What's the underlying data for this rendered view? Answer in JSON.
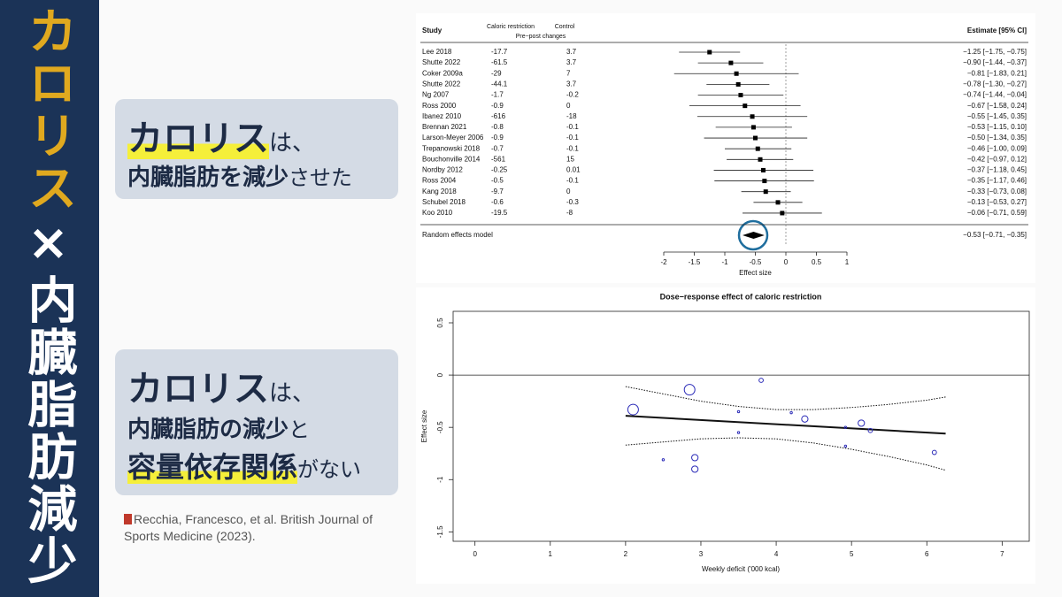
{
  "sidebar": {
    "title_accent": "カロリス",
    "title_rest": "×内臓脂肪減少"
  },
  "panels": [
    {
      "lines": [
        [
          "カロリス",
          "は、"
        ],
        [
          "内臓脂肪を減少",
          "させた"
        ]
      ]
    },
    {
      "lines": [
        [
          "カロリス",
          "は、"
        ],
        [
          "内臓脂肪の減少",
          "と"
        ],
        [
          "容量依存関係",
          "がない"
        ]
      ]
    }
  ],
  "citation": "Recchia, Francesco, et al. British Journal of Sports Medicine (2023).",
  "chart_data": [
    {
      "type": "forest",
      "columns": {
        "study": "Study",
        "caloric_restriction": "Caloric restriction",
        "control": "Control",
        "group": "Pre−post changes",
        "estimate": "Estimate [95% CI]"
      },
      "studies": [
        "Lee 2018",
        "Shutte 2022",
        "Coker 2009a",
        "Shutte 2022",
        "Ng 2007",
        "Ross 2000",
        "Ibanez 2010",
        "Brennan 2021",
        "Larson-Meyer 2006",
        "Trepanowski 2018",
        "Bouchonville 2014",
        "Nordby 2012",
        "Ross 2004",
        "Kang 2018",
        "Schubel 2018",
        "Koo 2010"
      ],
      "caloric_restriction": [
        -17.7,
        -61.5,
        -29,
        -44.1,
        -1.7,
        -0.9,
        -616,
        -0.8,
        -0.9,
        -0.7,
        -561,
        -0.25,
        -0.5,
        -9.7,
        -0.6,
        -19.5
      ],
      "control": [
        3.7,
        3.7,
        7,
        3.7,
        -0.2,
        0,
        -18,
        -0.1,
        -0.1,
        -0.1,
        15,
        0.01,
        -0.1,
        0,
        -0.3,
        -8
      ],
      "values": [
        -1.25,
        -0.9,
        -0.81,
        -0.78,
        -0.74,
        -0.67,
        -0.55,
        -0.53,
        -0.5,
        -0.46,
        -0.42,
        -0.37,
        -0.35,
        -0.33,
        -0.13,
        -0.06
      ],
      "ci_lower": [
        -1.75,
        -1.44,
        -1.83,
        -1.3,
        -1.44,
        -1.58,
        -1.45,
        -1.15,
        -1.34,
        -1.0,
        -0.97,
        -1.18,
        -1.17,
        -0.73,
        -0.53,
        -0.71
      ],
      "ci_upper": [
        -0.75,
        -0.37,
        0.21,
        -0.27,
        -0.04,
        0.24,
        0.35,
        0.1,
        0.35,
        0.09,
        0.12,
        0.45,
        0.46,
        0.08,
        0.27,
        0.59
      ],
      "value_labels": [
        "−1.25 [−1.75, −0.75]",
        "−0.90 [−1.44, −0.37]",
        "−0.81 [−1.83, 0.21]",
        "−0.78 [−1.30, −0.27]",
        "−0.74 [−1.44, −0.04]",
        "−0.67 [−1.58, 0.24]",
        "−0.55 [−1.45, 0.35]",
        "−0.53 [−1.15, 0.10]",
        "−0.50 [−1.34, 0.35]",
        "−0.46 [−1.00, 0.09]",
        "−0.42 [−0.97, 0.12]",
        "−0.37 [−1.18, 0.45]",
        "−0.35 [−1.17, 0.46]",
        "−0.33 [−0.73, 0.08]",
        "−0.13 [−0.53, 0.27]",
        "−0.06 [−0.71, 0.59]"
      ],
      "summary": {
        "label": "Random effects model",
        "value": -0.53,
        "ci_lower": -0.71,
        "ci_upper": -0.35,
        "value_label": "−0.53 [−0.71, −0.35]"
      },
      "xlim": [
        -2,
        1
      ],
      "xticks": [
        -2,
        -1.5,
        -1,
        -0.5,
        0,
        0.5,
        1
      ],
      "xlabel": "Effect size"
    },
    {
      "type": "bubble",
      "title": "Dose−response effect of caloric restriction",
      "xlabel": "Weekly deficit ('000 kcal)",
      "ylabel": "Effect size",
      "x": [
        2.1,
        2.85,
        3.8,
        3.5,
        4.2,
        4.38,
        5.13,
        4.92,
        5.25,
        3.5,
        4.92,
        6.1,
        2.5,
        2.92,
        2.92
      ],
      "values": [
        -0.33,
        -0.14,
        -0.05,
        -0.35,
        -0.36,
        -0.42,
        -0.46,
        -0.5,
        -0.53,
        -0.55,
        -0.68,
        -0.74,
        -0.81,
        -0.79,
        -0.9
      ],
      "sizes": [
        5,
        5,
        2,
        1,
        1,
        3,
        3,
        1,
        2,
        1,
        1,
        2,
        1,
        3,
        3
      ],
      "color": "#2b2bb8",
      "lines": [
        {
          "style": "solid",
          "x": [
            2,
            6.25
          ],
          "values": [
            -0.39,
            -0.56
          ]
        },
        {
          "style": "dotted",
          "x": [
            2,
            2.5,
            3,
            3.5,
            4,
            4.5,
            5,
            5.5,
            6,
            6.25
          ],
          "values": [
            -0.11,
            -0.18,
            -0.25,
            -0.3,
            -0.33,
            -0.33,
            -0.31,
            -0.28,
            -0.24,
            -0.21
          ]
        },
        {
          "style": "dotted",
          "x": [
            2,
            2.5,
            3,
            3.5,
            4,
            4.5,
            5,
            5.5,
            6,
            6.25
          ],
          "values": [
            -0.67,
            -0.64,
            -0.61,
            -0.6,
            -0.61,
            -0.65,
            -0.71,
            -0.78,
            -0.86,
            -0.91
          ]
        }
      ],
      "reference_line": 0,
      "xlim": [
        -0.29,
        7.36
      ],
      "xticks": [
        0,
        1,
        2,
        3,
        4,
        5,
        6,
        7
      ],
      "ylim": [
        -1.59,
        0.61
      ],
      "yticks": [
        -1.5,
        -1,
        -0.5,
        0,
        0.5
      ]
    }
  ]
}
